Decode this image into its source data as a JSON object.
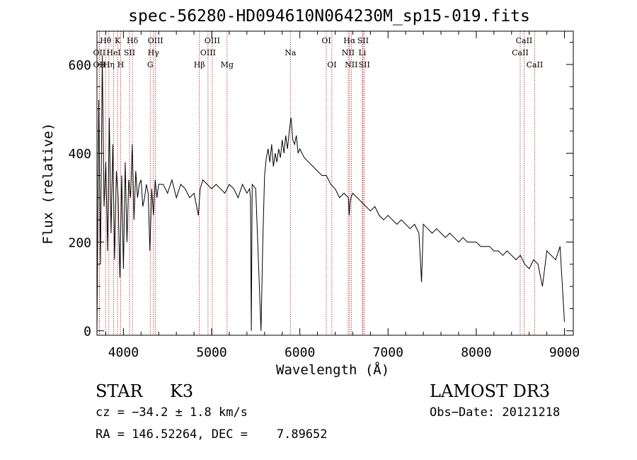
{
  "chart_data": {
    "type": "line",
    "title": "spec-56280-HD094610N064230M_sp15-019.fits",
    "xlabel": "Wavelength (Å)",
    "ylabel": "Flux (relative)",
    "xlim": [
      3700,
      9100
    ],
    "ylim": [
      -10,
      675
    ],
    "x_ticks": [
      4000,
      5000,
      6000,
      7000,
      8000,
      9000
    ],
    "y_ticks": [
      0,
      200,
      400,
      600
    ],
    "grid": false,
    "line_color": "#000000",
    "marker_color": "#b22222",
    "spectral_lines": [
      {
        "label": "OII",
        "x": 3727,
        "row": 2
      },
      {
        "label": "Hθ",
        "x": 3798,
        "row": 1
      },
      {
        "label": "OII",
        "x": 3727,
        "row": 3
      },
      {
        "label": "Hη",
        "x": 3835,
        "row": 3
      },
      {
        "label": "K",
        "x": 3934,
        "row": 1
      },
      {
        "label": "HeI",
        "x": 3889,
        "row": 2
      },
      {
        "label": "H",
        "x": 3969,
        "row": 3
      },
      {
        "label": "SII",
        "x": 4069,
        "row": 2
      },
      {
        "label": "Hδ",
        "x": 4102,
        "row": 1
      },
      {
        "label": "OIII",
        "x": 4363,
        "row": 1
      },
      {
        "label": "Hγ",
        "x": 4340,
        "row": 2
      },
      {
        "label": "G",
        "x": 4304,
        "row": 3
      },
      {
        "label": "Hβ",
        "x": 4861,
        "row": 3
      },
      {
        "label": "OIII",
        "x": 5007,
        "row": 1
      },
      {
        "label": "OIII",
        "x": 4959,
        "row": 2
      },
      {
        "label": "Mg",
        "x": 5175,
        "row": 3
      },
      {
        "label": "Na",
        "x": 5893,
        "row": 2
      },
      {
        "label": "OI",
        "x": 6300,
        "row": 1
      },
      {
        "label": "OI",
        "x": 6363,
        "row": 3
      },
      {
        "label": "Hα",
        "x": 6563,
        "row": 1
      },
      {
        "label": "NII",
        "x": 6548,
        "row": 2
      },
      {
        "label": "NII",
        "x": 6583,
        "row": 3
      },
      {
        "label": "SII",
        "x": 6716,
        "row": 1
      },
      {
        "label": "Li",
        "x": 6708,
        "row": 2
      },
      {
        "label": "SII",
        "x": 6731,
        "row": 3
      },
      {
        "label": "CaII",
        "x": 8542,
        "row": 1
      },
      {
        "label": "CaII",
        "x": 8498,
        "row": 2
      },
      {
        "label": "CaII",
        "x": 8662,
        "row": 3
      }
    ],
    "series": [
      {
        "x": [
          3700,
          3720,
          3740,
          3760,
          3780,
          3800,
          3820,
          3840,
          3860,
          3880,
          3900,
          3920,
          3940,
          3960,
          3980,
          4000,
          4020,
          4040,
          4060,
          4080,
          4100,
          4120,
          4140,
          4160,
          4180,
          4200,
          4220,
          4240,
          4260,
          4280,
          4300,
          4320,
          4340,
          4360,
          4380,
          4400,
          4450,
          4500,
          4550,
          4600,
          4650,
          4700,
          4750,
          4800,
          4850,
          4870,
          4900,
          4950,
          5000,
          5050,
          5100,
          5150,
          5200,
          5250,
          5300,
          5350,
          5400,
          5430,
          5440,
          5450,
          5460,
          5500,
          5560,
          5580,
          5600,
          5620,
          5640,
          5660,
          5680,
          5700,
          5720,
          5740,
          5760,
          5780,
          5800,
          5820,
          5840,
          5860,
          5880,
          5900,
          5920,
          5940,
          5960,
          5980,
          6000,
          6050,
          6100,
          6150,
          6200,
          6250,
          6300,
          6350,
          6400,
          6450,
          6500,
          6550,
          6560,
          6570,
          6580,
          6600,
          6650,
          6700,
          6750,
          6800,
          6850,
          6900,
          6950,
          7000,
          7050,
          7100,
          7150,
          7200,
          7250,
          7300,
          7350,
          7380,
          7400,
          7450,
          7500,
          7550,
          7600,
          7650,
          7700,
          7750,
          7800,
          7850,
          7900,
          7950,
          8000,
          8050,
          8100,
          8150,
          8200,
          8250,
          8300,
          8350,
          8400,
          8450,
          8500,
          8550,
          8600,
          8650,
          8700,
          8750,
          8800,
          8850,
          8900,
          8950,
          9000
        ],
        "y": [
          0,
          520,
          150,
          620,
          280,
          380,
          180,
          480,
          220,
          420,
          160,
          360,
          300,
          120,
          350,
          140,
          380,
          200,
          340,
          300,
          420,
          250,
          360,
          300,
          330,
          340,
          280,
          300,
          330,
          310,
          180,
          320,
          260,
          340,
          300,
          330,
          330,
          310,
          340,
          300,
          330,
          320,
          300,
          310,
          260,
          320,
          340,
          330,
          320,
          330,
          320,
          310,
          330,
          320,
          300,
          330,
          310,
          320,
          300,
          0,
          330,
          320,
          0,
          200,
          350,
          390,
          410,
          380,
          420,
          370,
          400,
          380,
          410,
          390,
          430,
          400,
          440,
          410,
          450,
          480,
          430,
          420,
          440,
          400,
          410,
          390,
          380,
          370,
          360,
          350,
          350,
          330,
          320,
          300,
          310,
          300,
          260,
          290,
          300,
          310,
          300,
          290,
          280,
          270,
          280,
          260,
          250,
          260,
          250,
          240,
          250,
          240,
          230,
          240,
          220,
          110,
          240,
          230,
          220,
          230,
          220,
          210,
          220,
          210,
          200,
          210,
          200,
          200,
          200,
          190,
          190,
          190,
          180,
          180,
          170,
          180,
          170,
          160,
          170,
          150,
          140,
          160,
          150,
          100,
          180,
          170,
          160,
          190,
          20
        ]
      }
    ]
  },
  "labels": {
    "classification": "STAR",
    "subclass": "K3",
    "survey": "LAMOST DR3",
    "cz": "cz = −34.2 ± 1.8 km/s",
    "obs_date": "Obs−Date: 20121218",
    "coords": "RA = 146.52264, DEC =    7.89652"
  }
}
